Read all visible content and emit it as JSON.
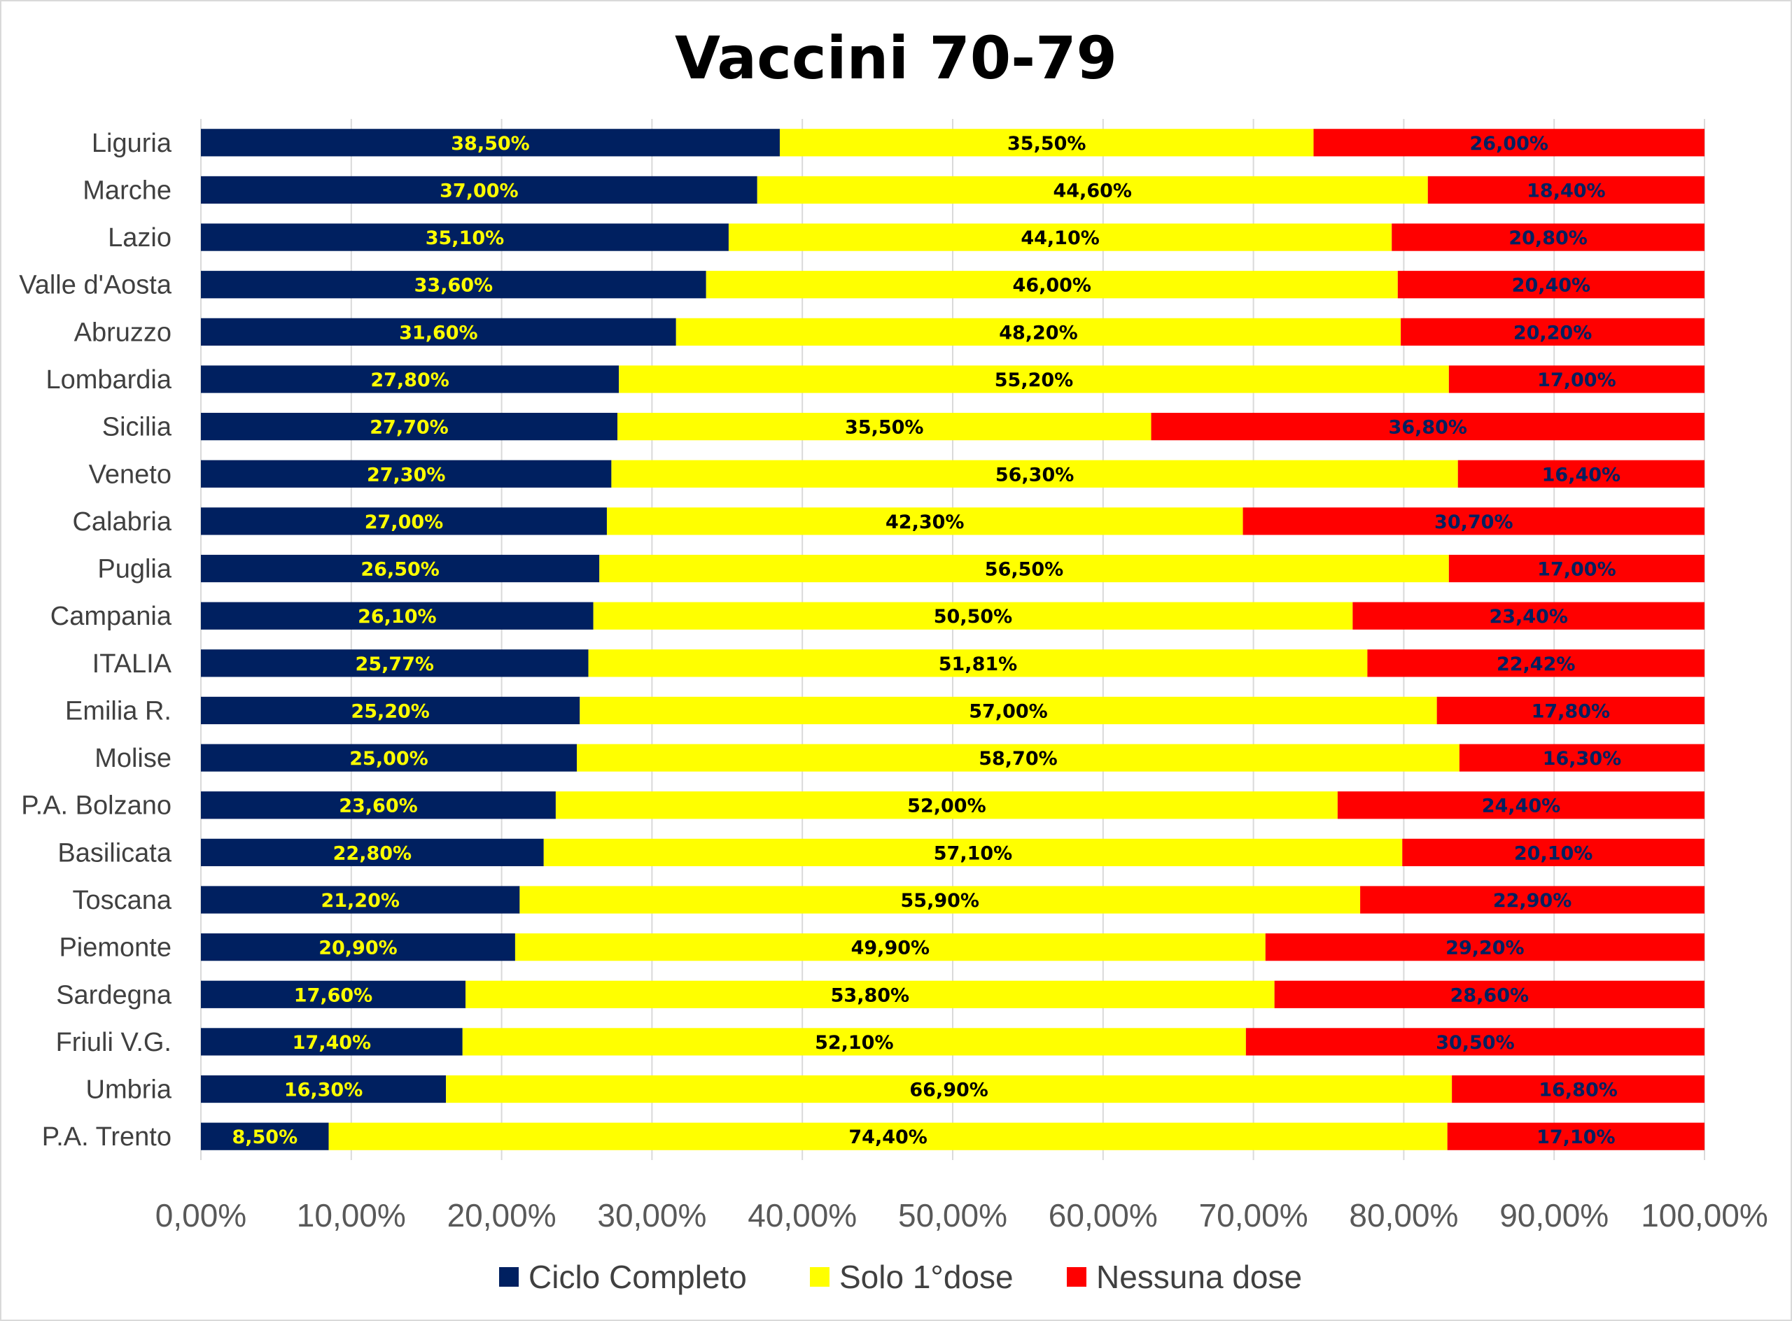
{
  "chart_data": {
    "type": "bar",
    "orientation": "horizontal",
    "stacked": true,
    "title": "Vaccini 70-79",
    "xlabel": "",
    "ylabel": "",
    "xlim": [
      0,
      100
    ],
    "x_ticks": [
      "0,00%",
      "10,00%",
      "20,00%",
      "30,00%",
      "40,00%",
      "50,00%",
      "60,00%",
      "70,00%",
      "80,00%",
      "90,00%",
      "100,00%"
    ],
    "grid": true,
    "legend_position": "bottom",
    "categories": [
      "Liguria",
      "Marche",
      "Lazio",
      "Valle d'Aosta",
      "Abruzzo",
      "Lombardia",
      "Sicilia",
      "Veneto",
      "Calabria",
      "Puglia",
      "Campania",
      "ITALIA",
      "Emilia R.",
      "Molise",
      "P.A. Bolzano",
      "Basilicata",
      "Toscana",
      "Piemonte",
      "Sardegna",
      "Friuli V.G.",
      "Umbria",
      "P.A. Trento"
    ],
    "series": [
      {
        "name": "Ciclo Completo",
        "color": "#002060",
        "label_color": "#ffff00",
        "values": [
          38.5,
          37.0,
          35.1,
          33.6,
          31.6,
          27.8,
          27.7,
          27.3,
          27.0,
          26.5,
          26.1,
          25.77,
          25.2,
          25.0,
          23.6,
          22.8,
          21.2,
          20.9,
          17.6,
          17.4,
          16.3,
          8.5
        ],
        "labels": [
          "38,50%",
          "37,00%",
          "35,10%",
          "33,60%",
          "31,60%",
          "27,80%",
          "27,70%",
          "27,30%",
          "27,00%",
          "26,50%",
          "26,10%",
          "25,77%",
          "25,20%",
          "25,00%",
          "23,60%",
          "22,80%",
          "21,20%",
          "20,90%",
          "17,60%",
          "17,40%",
          "16,30%",
          "8,50%"
        ]
      },
      {
        "name": "Solo 1°dose",
        "color": "#ffff00",
        "label_color": "#000000",
        "values": [
          35.5,
          44.6,
          44.1,
          46.0,
          48.2,
          55.2,
          35.5,
          56.3,
          42.3,
          56.5,
          50.5,
          51.81,
          57.0,
          58.7,
          52.0,
          57.1,
          55.9,
          49.9,
          53.8,
          52.1,
          66.9,
          74.4
        ],
        "labels": [
          "35,50%",
          "44,60%",
          "44,10%",
          "46,00%",
          "48,20%",
          "55,20%",
          "35,50%",
          "56,30%",
          "42,30%",
          "56,50%",
          "50,50%",
          "51,81%",
          "57,00%",
          "58,70%",
          "52,00%",
          "57,10%",
          "55,90%",
          "49,90%",
          "53,80%",
          "52,10%",
          "66,90%",
          "74,40%"
        ]
      },
      {
        "name": "Nessuna dose",
        "color": "#ff0000",
        "label_color": "#002060",
        "values": [
          26.0,
          18.4,
          20.8,
          20.4,
          20.2,
          17.0,
          36.8,
          16.4,
          30.7,
          17.0,
          23.4,
          22.42,
          17.8,
          16.3,
          24.4,
          20.1,
          22.9,
          29.2,
          28.6,
          30.5,
          16.8,
          17.1
        ],
        "labels": [
          "26,00%",
          "18,40%",
          "20,80%",
          "20,40%",
          "20,20%",
          "17,00%",
          "36,80%",
          "16,40%",
          "30,70%",
          "17,00%",
          "23,40%",
          "22,42%",
          "17,80%",
          "16,30%",
          "24,40%",
          "20,10%",
          "22,90%",
          "29,20%",
          "28,60%",
          "30,50%",
          "16,80%",
          "17,10%"
        ]
      }
    ]
  }
}
